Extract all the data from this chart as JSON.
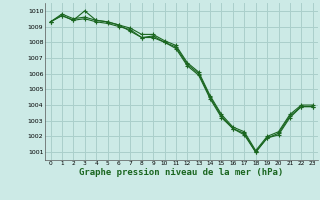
{
  "background_color": "#cceae6",
  "grid_color": "#aacfcb",
  "line_color": "#1a6620",
  "marker_color": "#1a6620",
  "xlabel": "Graphe pression niveau de la mer (hPa)",
  "xlabel_fontsize": 6.5,
  "xlim": [
    -0.5,
    23.5
  ],
  "ylim": [
    1000.5,
    1010.5
  ],
  "yticks": [
    1001,
    1002,
    1003,
    1004,
    1005,
    1006,
    1007,
    1008,
    1009,
    1010
  ],
  "xticks": [
    0,
    1,
    2,
    3,
    4,
    5,
    6,
    7,
    8,
    9,
    10,
    11,
    12,
    13,
    14,
    15,
    16,
    17,
    18,
    19,
    20,
    21,
    22,
    23
  ],
  "series1_x": [
    0,
    1,
    2,
    3,
    4,
    5,
    6,
    7,
    8,
    9,
    10,
    11,
    12,
    13,
    14,
    15,
    16,
    17,
    18,
    19,
    20,
    21,
    22,
    23
  ],
  "series1_y": [
    1009.3,
    1009.7,
    1009.4,
    1010.0,
    1009.4,
    1009.3,
    1009.1,
    1008.7,
    1008.3,
    1008.3,
    1008.0,
    1007.7,
    1006.6,
    1006.0,
    1004.5,
    1003.3,
    1002.5,
    1002.2,
    1001.0,
    1001.9,
    1002.2,
    1003.3,
    1003.9,
    1003.9
  ],
  "series2_x": [
    0,
    1,
    2,
    3,
    4,
    5,
    6,
    7,
    8,
    9,
    10,
    11,
    12,
    13,
    14,
    15,
    16,
    17,
    18,
    19,
    20,
    21,
    22,
    23
  ],
  "series2_y": [
    1009.3,
    1009.7,
    1009.4,
    1009.5,
    1009.3,
    1009.2,
    1009.0,
    1008.8,
    1008.3,
    1008.4,
    1008.0,
    1007.6,
    1006.5,
    1005.9,
    1004.4,
    1003.2,
    1002.5,
    1002.1,
    1001.0,
    1001.9,
    1002.1,
    1003.2,
    1003.9,
    1003.9
  ],
  "series3_x": [
    0,
    1,
    2,
    3,
    4,
    5,
    6,
    7,
    8,
    9,
    10,
    11,
    12,
    13,
    14,
    15,
    16,
    17,
    18,
    19,
    20,
    21,
    22,
    23
  ],
  "series3_y": [
    1009.3,
    1009.8,
    1009.5,
    1009.6,
    1009.4,
    1009.3,
    1009.1,
    1008.9,
    1008.5,
    1008.5,
    1008.1,
    1007.8,
    1006.7,
    1006.1,
    1004.6,
    1003.4,
    1002.6,
    1002.3,
    1001.1,
    1002.0,
    1002.3,
    1003.4,
    1004.0,
    1004.0
  ]
}
